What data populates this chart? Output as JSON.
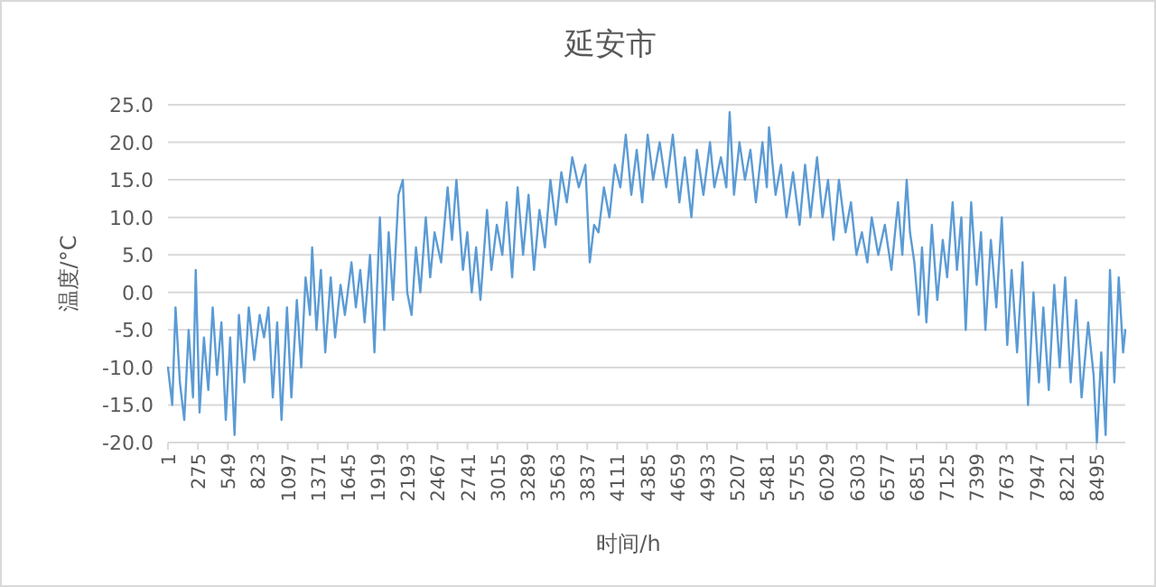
{
  "chart_data": {
    "type": "line",
    "title": "延安市",
    "xlabel": "时间/h",
    "ylabel": "温度/°C",
    "xlim": [
      1,
      8760
    ],
    "xticks": [
      1,
      275,
      549,
      823,
      1097,
      1371,
      1645,
      1919,
      2193,
      2467,
      2741,
      3015,
      3289,
      3563,
      3837,
      4111,
      4385,
      4659,
      4933,
      5207,
      5481,
      5755,
      6029,
      6303,
      6577,
      6851,
      7125,
      7399,
      7673,
      7947,
      8221,
      8495
    ],
    "ylim": [
      -20,
      25
    ],
    "yticks": [
      {
        "value": -20,
        "label": "-20.0"
      },
      {
        "value": -15,
        "label": "-15.0"
      },
      {
        "value": -10,
        "label": "-10.0"
      },
      {
        "value": -5,
        "label": "-5.0"
      },
      {
        "value": 0,
        "label": "0.0"
      },
      {
        "value": 5,
        "label": "5.0"
      },
      {
        "value": 10,
        "label": "10.0"
      },
      {
        "value": 15,
        "label": "15.0"
      },
      {
        "value": 20,
        "label": "20.0"
      },
      {
        "value": 25,
        "label": "25.0"
      }
    ],
    "grid": "y",
    "marker": "none",
    "line_style": "solid",
    "series": [
      {
        "color": "#5b9bd5",
        "x": [
          1,
          40,
          70,
          110,
          150,
          190,
          230,
          255,
          290,
          330,
          370,
          410,
          450,
          490,
          530,
          570,
          610,
          650,
          700,
          740,
          790,
          840,
          880,
          920,
          960,
          1000,
          1040,
          1090,
          1130,
          1180,
          1220,
          1260,
          1300,
          1320,
          1360,
          1400,
          1440,
          1490,
          1530,
          1580,
          1620,
          1680,
          1720,
          1760,
          1800,
          1850,
          1890,
          1940,
          1980,
          2020,
          2060,
          2110,
          2150,
          2190,
          2230,
          2270,
          2310,
          2360,
          2400,
          2440,
          2500,
          2560,
          2600,
          2640,
          2700,
          2740,
          2780,
          2820,
          2860,
          2920,
          2960,
          3010,
          3060,
          3100,
          3150,
          3200,
          3250,
          3300,
          3350,
          3400,
          3450,
          3500,
          3550,
          3600,
          3650,
          3700,
          3760,
          3820,
          3860,
          3900,
          3940,
          3990,
          4040,
          4090,
          4140,
          4190,
          4240,
          4290,
          4340,
          4390,
          4440,
          4500,
          4560,
          4620,
          4680,
          4730,
          4790,
          4840,
          4900,
          4960,
          5000,
          5060,
          5110,
          5140,
          5180,
          5230,
          5280,
          5330,
          5380,
          5440,
          5480,
          5500,
          5560,
          5610,
          5660,
          5720,
          5780,
          5830,
          5880,
          5940,
          5990,
          6040,
          6090,
          6140,
          6200,
          6250,
          6300,
          6350,
          6400,
          6440,
          6500,
          6560,
          6620,
          6680,
          6720,
          6760,
          6790,
          6830,
          6870,
          6900,
          6940,
          6990,
          7040,
          7090,
          7130,
          7180,
          7220,
          7260,
          7300,
          7350,
          7400,
          7440,
          7480,
          7530,
          7580,
          7630,
          7680,
          7720,
          7770,
          7820,
          7870,
          7920,
          7970,
          8010,
          8060,
          8110,
          8160,
          8210,
          8260,
          8310,
          8360,
          8420,
          8470,
          8500,
          8540,
          8580,
          8620,
          8660,
          8700,
          8740,
          8760
        ],
        "values": [
          -10,
          -15,
          -2,
          -12,
          -17,
          -5,
          -14,
          3,
          -16,
          -6,
          -13,
          -2,
          -11,
          -4,
          -17,
          -6,
          -19,
          -3,
          -12,
          -2,
          -9,
          -3,
          -6,
          -2,
          -14,
          -4,
          -17,
          -2,
          -14,
          -1,
          -10,
          2,
          -3,
          6,
          -5,
          3,
          -8,
          2,
          -6,
          1,
          -3,
          4,
          -2,
          3,
          -4,
          5,
          -8,
          10,
          -5,
          8,
          -1,
          13,
          15,
          0,
          -3,
          6,
          0,
          10,
          2,
          8,
          4,
          14,
          7,
          15,
          3,
          8,
          0,
          6,
          -1,
          11,
          3,
          9,
          5,
          12,
          2,
          14,
          5,
          13,
          3,
          11,
          6,
          15,
          9,
          16,
          12,
          18,
          14,
          17,
          4,
          9,
          8,
          14,
          10,
          17,
          14,
          21,
          13,
          19,
          12,
          21,
          15,
          20,
          14,
          21,
          12,
          18,
          10,
          19,
          13,
          20,
          14,
          18,
          14,
          24,
          13,
          20,
          15,
          19,
          12,
          20,
          14,
          22,
          13,
          17,
          10,
          16,
          9,
          17,
          10,
          18,
          10,
          15,
          7,
          15,
          8,
          12,
          5,
          8,
          4,
          10,
          5,
          9,
          3,
          12,
          5,
          15,
          8,
          4,
          -3,
          6,
          -4,
          9,
          -1,
          7,
          2,
          12,
          3,
          10,
          -5,
          12,
          1,
          8,
          -5,
          7,
          -2,
          10,
          -7,
          3,
          -8,
          4,
          -15,
          0,
          -12,
          -2,
          -13,
          1,
          -10,
          2,
          -12,
          -1,
          -14,
          -4,
          -11,
          -20,
          -8,
          -19,
          3,
          -12,
          2,
          -8,
          -5
        ]
      }
    ]
  }
}
